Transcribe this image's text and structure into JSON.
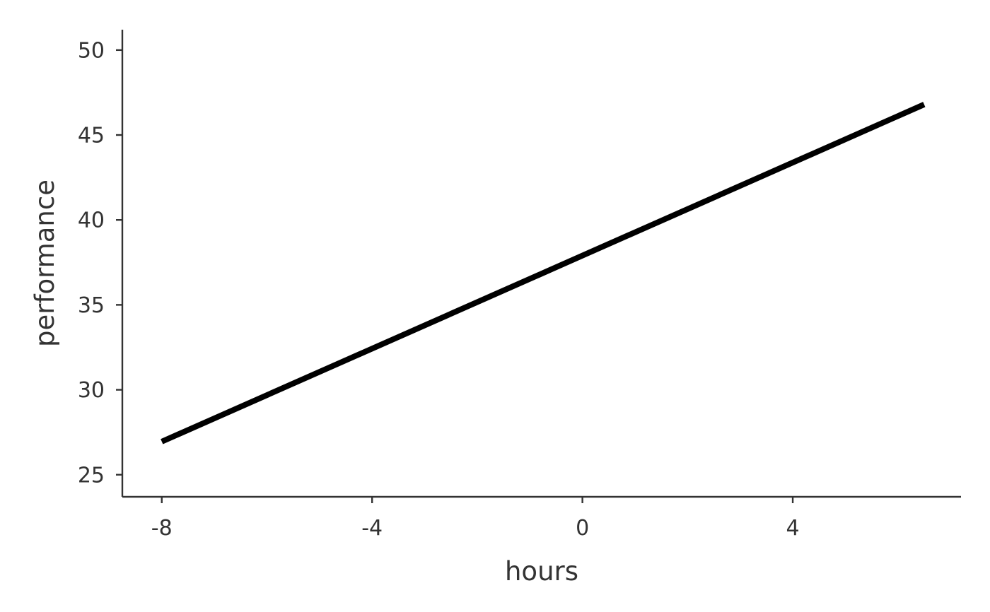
{
  "chart_data": {
    "type": "line",
    "title": "",
    "xlabel": "hours",
    "ylabel": "performance",
    "xlim": [
      -8.75,
      7.2
    ],
    "ylim": [
      23.7,
      51.2
    ],
    "x_ticks": [
      -8,
      -4,
      0,
      4
    ],
    "x_tick_labels": [
      "-8",
      "-4",
      "0",
      "4"
    ],
    "y_ticks": [
      25,
      30,
      35,
      40,
      45,
      50
    ],
    "y_tick_labels": [
      "25",
      "30",
      "35",
      "40",
      "45",
      "50"
    ],
    "grid": false,
    "legend": "none",
    "series": [
      {
        "x": [
          -8,
          6.5
        ],
        "y": [
          26.95,
          46.8
        ],
        "color": "#000000"
      }
    ]
  }
}
